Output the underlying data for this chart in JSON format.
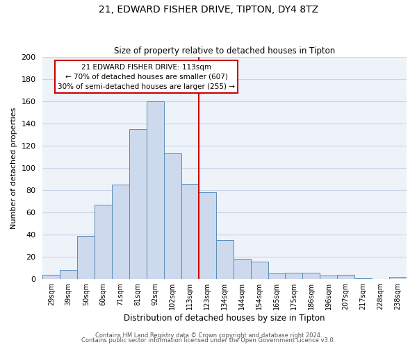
{
  "title": "21, EDWARD FISHER DRIVE, TIPTON, DY4 8TZ",
  "subtitle": "Size of property relative to detached houses in Tipton",
  "xlabel": "Distribution of detached houses by size in Tipton",
  "ylabel": "Number of detached properties",
  "bar_labels": [
    "29sqm",
    "39sqm",
    "50sqm",
    "60sqm",
    "71sqm",
    "81sqm",
    "92sqm",
    "102sqm",
    "113sqm",
    "123sqm",
    "134sqm",
    "144sqm",
    "154sqm",
    "165sqm",
    "175sqm",
    "186sqm",
    "196sqm",
    "207sqm",
    "217sqm",
    "228sqm",
    "238sqm"
  ],
  "bar_values": [
    4,
    8,
    39,
    67,
    85,
    135,
    160,
    113,
    86,
    78,
    35,
    18,
    16,
    5,
    6,
    6,
    3,
    4,
    1,
    0,
    2
  ],
  "bar_color": "#cdd9ed",
  "bar_edgecolor": "#5b8db8",
  "vline_index": 8,
  "vline_color": "#cc0000",
  "annotation_line1": "21 EDWARD FISHER DRIVE: 113sqm",
  "annotation_line2": "← 70% of detached houses are smaller (607)",
  "annotation_line3": "30% of semi-detached houses are larger (255) →",
  "annotation_box_edgecolor": "#cc0000",
  "annotation_box_facecolor": "#ffffff",
  "ylim": [
    0,
    200
  ],
  "yticks": [
    0,
    20,
    40,
    60,
    80,
    100,
    120,
    140,
    160,
    180,
    200
  ],
  "footer1": "Contains HM Land Registry data © Crown copyright and database right 2024.",
  "footer2": "Contains public sector information licensed under the Open Government Licence v3.0.",
  "background_color": "#eef2f9",
  "grid_color": "#c8d4e8"
}
